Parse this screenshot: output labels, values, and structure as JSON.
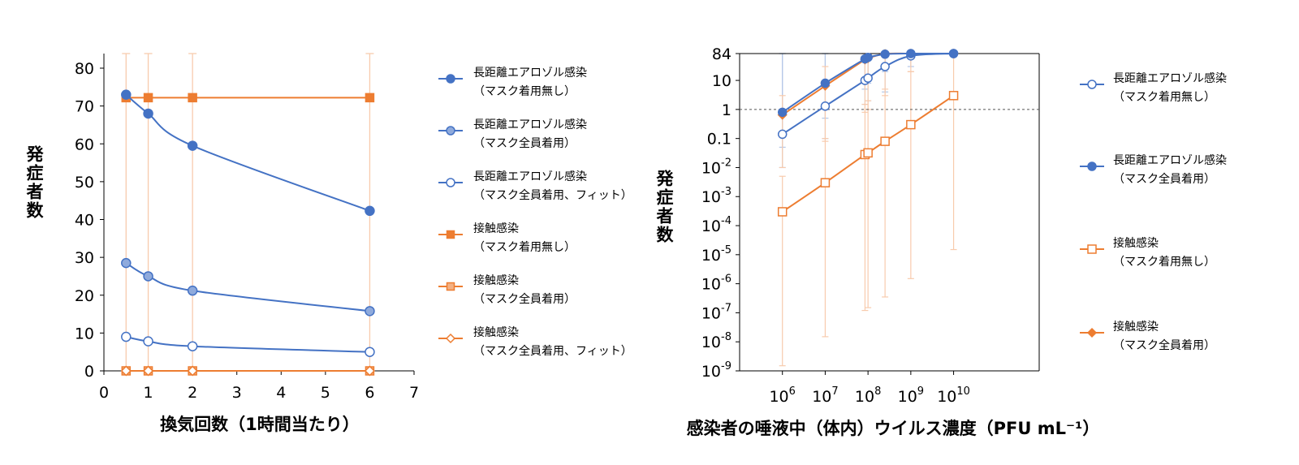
{
  "chart_data": [
    {
      "type": "line",
      "xlabel": "換気回数（1時間当たり）",
      "ylabel": "発症者数",
      "xlim": [
        0,
        7
      ],
      "ylim": [
        0,
        80
      ],
      "xticks": [
        "0",
        "1",
        "2",
        "3",
        "4",
        "5",
        "6",
        "7"
      ],
      "yticks": [
        "0",
        "10",
        "20",
        "30",
        "40",
        "50",
        "60",
        "70",
        "80"
      ],
      "x": [
        0.5,
        1,
        2,
        6
      ],
      "legend_position": "right",
      "series": [
        {
          "name": "長距離エアロゾル感染",
          "name2": "（マスク着用無し）",
          "values": [
            73,
            68,
            59.5,
            42.3
          ],
          "color": "#4472c4",
          "marker": "circle",
          "fill": "#4472c4"
        },
        {
          "name": "長距離エアロゾル感染",
          "name2": "（マスク全員着用）",
          "values": [
            28.5,
            25,
            21.2,
            15.8
          ],
          "color": "#4472c4",
          "marker": "circle",
          "fill": "#8faadc"
        },
        {
          "name": "長距離エアロゾル感染",
          "name2": "（マスク全員着用、フィット）",
          "values": [
            9,
            7.8,
            6.5,
            5
          ],
          "color": "#4472c4",
          "marker": "circle",
          "fill": "#ffffff"
        },
        {
          "name": "接触感染",
          "name2": "（マスク着用無し）",
          "values": [
            72.2,
            72.2,
            72.2,
            72.2
          ],
          "color": "#ed7d31",
          "marker": "square",
          "fill": "#ed7d31"
        },
        {
          "name": "接触感染",
          "name2": "（マスク全員着用）",
          "values": [
            0,
            0,
            0,
            0
          ],
          "color": "#ed7d31",
          "marker": "square",
          "fill": "#f4b183"
        },
        {
          "name": "接触感染",
          "name2": "（マスク全員着用、フィット）",
          "values": [
            0,
            0,
            0,
            0
          ],
          "color": "#ed7d31",
          "marker": "diamond",
          "fill": "#ffffff"
        }
      ]
    },
    {
      "type": "line",
      "xlabel": "感染者の唾液中（体内）ウイルス濃度（PFU mL⁻¹）",
      "ylabel": "発症者数",
      "x_scale": "log",
      "y_scale": "log",
      "xlim": [
        100000,
        1000000000000
      ],
      "ylim": [
        1e-09,
        84
      ],
      "xticks": [
        {
          "base": "10",
          "exp": "6",
          "value": 1000000.0
        },
        {
          "base": "10",
          "exp": "7",
          "value": 10000000.0
        },
        {
          "base": "10",
          "exp": "8",
          "value": 100000000.0
        },
        {
          "base": "10",
          "exp": "9",
          "value": 1000000000.0
        },
        {
          "base": "10",
          "exp": "10",
          "value": 10000000000.0
        }
      ],
      "yticks": [
        {
          "base": "84",
          "exp": "",
          "value": 84
        },
        {
          "base": "10",
          "exp": "",
          "value": 10
        },
        {
          "base": "1",
          "exp": "",
          "value": 1
        },
        {
          "base": "0.1",
          "exp": "",
          "value": 0.1
        },
        {
          "base": "10",
          "exp": "-2",
          "value": 0.01
        },
        {
          "base": "10",
          "exp": "-3",
          "value": 0.001
        },
        {
          "base": "10",
          "exp": "-4",
          "value": 0.0001
        },
        {
          "base": "10",
          "exp": "-5",
          "value": 1e-05
        },
        {
          "base": "10",
          "exp": "-6",
          "value": 1e-06
        },
        {
          "base": "10",
          "exp": "-7",
          "value": 1e-07
        },
        {
          "base": "10",
          "exp": "-8",
          "value": 1e-08
        },
        {
          "base": "10",
          "exp": "-9",
          "value": 1e-09
        }
      ],
      "reference_line_y": 1,
      "legend_position": "right",
      "series": [
        {
          "name": "長距離エアロゾル感染",
          "name2": "（マスク着用無し）",
          "color": "#4472c4",
          "marker": "circle",
          "fill": "#ffffff",
          "points": [
            {
              "x": 1000000.0,
              "y": 0.14,
              "err_low": 0.01,
              "err_high": 84
            },
            {
              "x": 10000000.0,
              "y": 1.3,
              "err_low": 0.1,
              "err_high": 84
            },
            {
              "x": 85000000.0,
              "y": 10,
              "err_low": 1.5,
              "err_high": 84
            },
            {
              "x": 100000000.0,
              "y": 12,
              "err_low": 2,
              "err_high": 84
            },
            {
              "x": 250000000.0,
              "y": 30,
              "err_low": 4,
              "err_high": 84
            },
            {
              "x": 1000000000.0,
              "y": 70,
              "err_low": 30,
              "err_high": 84
            },
            {
              "x": 10000000000.0,
              "y": 84,
              "err_low": 84,
              "err_high": 84
            }
          ]
        },
        {
          "name": "長距離エアロゾル感染",
          "name2": "（マスク全員着用）",
          "color": "#4472c4",
          "marker": "circle",
          "fill": "#4472c4",
          "points": [
            {
              "x": 1000000.0,
              "y": 0.8,
              "err_low": 0.05,
              "err_high": 84
            },
            {
              "x": 10000000.0,
              "y": 8,
              "err_low": 0.5,
              "err_high": 84
            },
            {
              "x": 85000000.0,
              "y": 55,
              "err_low": 5,
              "err_high": 84
            },
            {
              "x": 100000000.0,
              "y": 62,
              "err_low": 8,
              "err_high": 84
            },
            {
              "x": 250000000.0,
              "y": 80,
              "err_low": 20,
              "err_high": 84
            },
            {
              "x": 1000000000.0,
              "y": 84,
              "err_low": 60,
              "err_high": 84
            },
            {
              "x": 10000000000.0,
              "y": 84,
              "err_low": 84,
              "err_high": 84
            }
          ]
        },
        {
          "name": "接触感染",
          "name2": "（マスク着用無し）",
          "color": "#ed7d31",
          "marker": "square",
          "fill": "#ffffff",
          "points": [
            {
              "x": 1000000.0,
              "y": 0.0003,
              "err_low": 1.5e-09,
              "err_high": 0.005
            },
            {
              "x": 10000000.0,
              "y": 0.003,
              "err_low": 1.5e-08,
              "err_high": 0.1
            },
            {
              "x": 85000000.0,
              "y": 0.028,
              "err_low": 1.2e-07,
              "err_high": 1.5
            },
            {
              "x": 100000000.0,
              "y": 0.032,
              "err_low": 1.5e-07,
              "err_high": 2
            },
            {
              "x": 250000000.0,
              "y": 0.08,
              "err_low": 3.5e-07,
              "err_high": 5
            },
            {
              "x": 1000000000.0,
              "y": 0.3,
              "err_low": 1.5e-06,
              "err_high": 20
            },
            {
              "x": 10000000000.0,
              "y": 3,
              "err_low": 1.5e-05,
              "err_high": 84
            }
          ]
        },
        {
          "name": "接触感染",
          "name2": "（マスク全員着用）",
          "color": "#ed7d31",
          "marker": "diamond",
          "fill": "#ed7d31",
          "points": [
            {
              "x": 1000000.0,
              "y": 0.65,
              "err_low": 0.01,
              "err_high": 3
            },
            {
              "x": 10000000.0,
              "y": 6.5,
              "err_low": 0.08,
              "err_high": 30
            },
            {
              "x": 85000000.0,
              "y": 52,
              "err_low": 0.8,
              "err_high": 84
            },
            {
              "x": 100000000.0,
              "y": 58,
              "err_low": 1,
              "err_high": 84
            },
            {
              "x": 250000000.0,
              "y": 82,
              "err_low": 3,
              "err_high": 84
            },
            {
              "x": 1000000000.0,
              "y": 84,
              "err_low": 20,
              "err_high": 84
            },
            {
              "x": 10000000000.0,
              "y": 84,
              "err_low": 84,
              "err_high": 84
            }
          ]
        }
      ]
    }
  ]
}
